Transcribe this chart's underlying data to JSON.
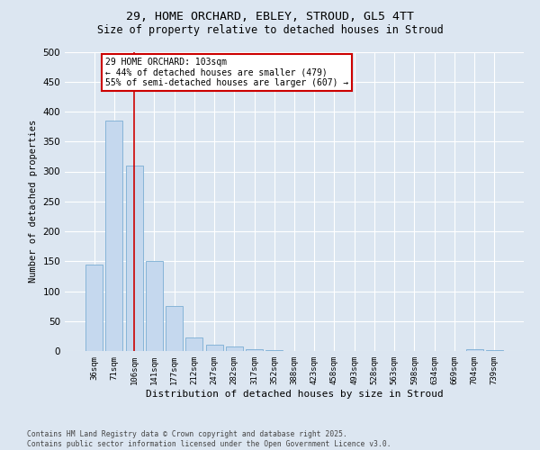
{
  "title": "29, HOME ORCHARD, EBLEY, STROUD, GL5 4TT",
  "subtitle": "Size of property relative to detached houses in Stroud",
  "xlabel": "Distribution of detached houses by size in Stroud",
  "ylabel": "Number of detached properties",
  "bar_color": "#c5d8ee",
  "bar_edge_color": "#7aadd4",
  "background_color": "#dce6f1",
  "grid_color": "#ffffff",
  "categories": [
    "36sqm",
    "71sqm",
    "106sqm",
    "141sqm",
    "177sqm",
    "212sqm",
    "247sqm",
    "282sqm",
    "317sqm",
    "352sqm",
    "388sqm",
    "423sqm",
    "458sqm",
    "493sqm",
    "528sqm",
    "563sqm",
    "598sqm",
    "634sqm",
    "669sqm",
    "704sqm",
    "739sqm"
  ],
  "values": [
    145,
    385,
    310,
    150,
    75,
    22,
    10,
    8,
    3,
    1,
    0,
    0,
    0,
    0,
    0,
    0,
    0,
    0,
    0,
    3,
    2
  ],
  "vline_x": 2,
  "vline_color": "#cc0000",
  "annotation_text": "29 HOME ORCHARD: 103sqm\n← 44% of detached houses are smaller (479)\n55% of semi-detached houses are larger (607) →",
  "annotation_box_color": "#ffffff",
  "annotation_box_edge": "#cc0000",
  "ylim": [
    0,
    500
  ],
  "yticks": [
    0,
    50,
    100,
    150,
    200,
    250,
    300,
    350,
    400,
    450,
    500
  ],
  "footnote": "Contains HM Land Registry data © Crown copyright and database right 2025.\nContains public sector information licensed under the Open Government Licence v3.0.",
  "figsize": [
    6.0,
    5.0
  ],
  "dpi": 100
}
